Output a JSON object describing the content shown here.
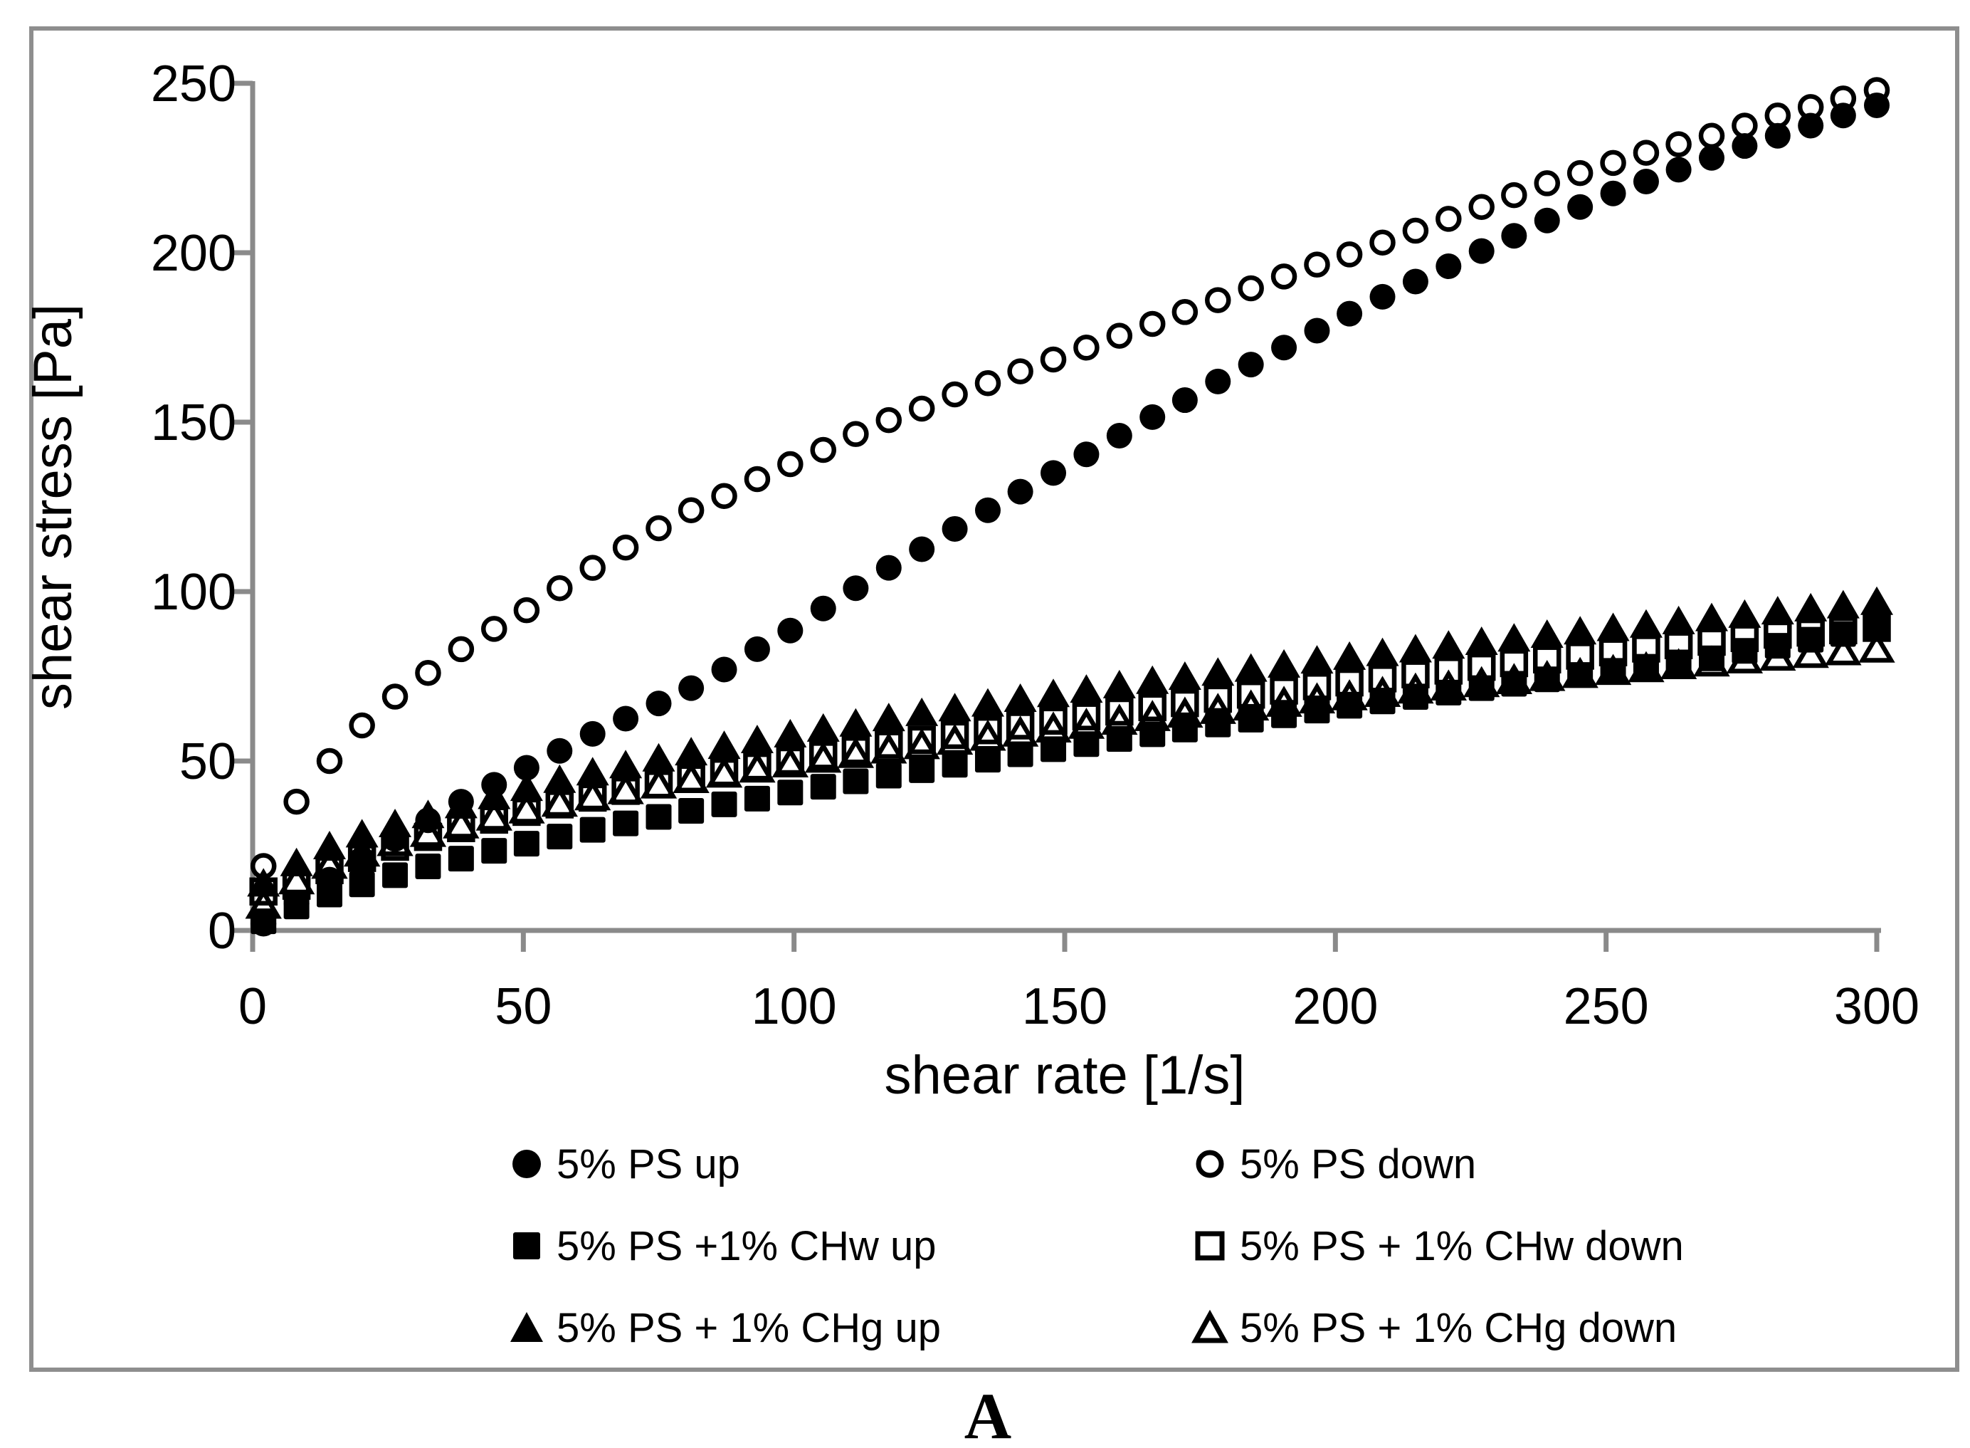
{
  "figure": {
    "corner_label": "A",
    "background_color": "#ffffff",
    "border_color": "#8e8e8e",
    "axis_color": "#8a8a8a",
    "marker_color": "#000000"
  },
  "chart_data": {
    "type": "scatter",
    "title": "",
    "xlabel": "shear rate [1/s]",
    "ylabel": "shear stress [Pa]",
    "xlim": [
      0,
      300
    ],
    "ylim": [
      0,
      250
    ],
    "x_ticks": [
      0,
      50,
      100,
      150,
      200,
      250,
      300
    ],
    "y_ticks": [
      0,
      50,
      100,
      150,
      200,
      250
    ],
    "grid": false,
    "legend_position": "bottom two-column",
    "series": [
      {
        "name": "5% PS up",
        "marker": "filled-circle",
        "x": [
          2.0,
          8.1,
          14.2,
          20.2,
          26.3,
          32.4,
          38.5,
          44.6,
          50.6,
          56.7,
          62.8,
          68.9,
          75.0,
          81.0,
          87.1,
          93.2,
          99.3,
          105.4,
          111.4,
          117.5,
          123.6,
          129.7,
          135.8,
          141.8,
          147.9,
          154.0,
          160.1,
          166.2,
          172.2,
          178.3,
          184.4,
          190.5,
          196.6,
          202.6,
          208.7,
          214.8,
          220.9,
          227.0,
          233.0,
          239.1,
          245.2,
          251.3,
          257.4,
          263.4,
          269.5,
          275.6,
          281.7,
          287.8,
          293.8,
          300.0
        ],
        "y": [
          2,
          8,
          15,
          21,
          27,
          32.5,
          38,
          43,
          48,
          53,
          58,
          62.5,
          67,
          71.5,
          77,
          83,
          88.5,
          95,
          101,
          107,
          112.5,
          118.5,
          124,
          129.5,
          135,
          140.5,
          146,
          151.5,
          156.5,
          162,
          167,
          172,
          177,
          182,
          187,
          191.5,
          196,
          200.5,
          205,
          209.5,
          213.5,
          217.5,
          221,
          224.5,
          228,
          231.5,
          234.5,
          237.5,
          240.5,
          243.5
        ]
      },
      {
        "name": "5% PS down",
        "marker": "open-circle",
        "x": [
          2.0,
          8.1,
          14.2,
          20.2,
          26.3,
          32.4,
          38.5,
          44.6,
          50.6,
          56.7,
          62.8,
          68.9,
          75.0,
          81.0,
          87.1,
          93.2,
          99.3,
          105.4,
          111.4,
          117.5,
          123.6,
          129.7,
          135.8,
          141.8,
          147.9,
          154.0,
          160.1,
          166.2,
          172.2,
          178.3,
          184.4,
          190.5,
          196.6,
          202.6,
          208.7,
          214.8,
          220.9,
          227.0,
          233.0,
          239.1,
          245.2,
          251.3,
          257.4,
          263.4,
          269.5,
          275.6,
          281.7,
          287.8,
          293.8,
          300.0
        ],
        "y": [
          19,
          38,
          50,
          60.5,
          69,
          76,
          83,
          89,
          94.5,
          101,
          107,
          113,
          118.7,
          124,
          128.2,
          133.2,
          137.6,
          141.8,
          146.5,
          150.6,
          154,
          158.2,
          161.5,
          165,
          168.5,
          172,
          175.5,
          179,
          182.5,
          186,
          189.5,
          193,
          196.5,
          199.5,
          203,
          206.5,
          210,
          213.5,
          217,
          220.5,
          223.5,
          226.5,
          229.5,
          232,
          234.5,
          237.5,
          240.5,
          243,
          245.5,
          248
        ]
      },
      {
        "name": "5% PS +1% CHw  up",
        "marker": "filled-square",
        "x": [
          2.0,
          8.1,
          14.2,
          20.2,
          26.3,
          32.4,
          38.5,
          44.6,
          50.6,
          56.7,
          62.8,
          68.9,
          75.0,
          81.0,
          87.1,
          93.2,
          99.3,
          105.4,
          111.4,
          117.5,
          123.6,
          129.7,
          135.8,
          141.8,
          147.9,
          154.0,
          160.1,
          166.2,
          172.2,
          178.3,
          184.4,
          190.5,
          196.6,
          202.6,
          208.7,
          214.8,
          220.9,
          227.0,
          233.0,
          239.1,
          245.2,
          251.3,
          257.4,
          263.4,
          269.5,
          275.6,
          281.7,
          287.8,
          293.8,
          300.0
        ],
        "y": [
          2.7,
          7.1,
          10.6,
          13.6,
          16.3,
          18.9,
          21.2,
          23.5,
          25.6,
          27.7,
          29.7,
          31.6,
          33.5,
          35.3,
          37.2,
          38.9,
          40.7,
          42.4,
          44,
          45.7,
          47.3,
          48.9,
          50.4,
          52,
          53.5,
          55,
          56.5,
          57.9,
          59.3,
          60.8,
          62.2,
          63.5,
          64.9,
          66.3,
          67.6,
          68.9,
          70.2,
          71.5,
          72.8,
          74.1,
          75.4,
          76.6,
          77.8,
          79.1,
          80.3,
          82.5,
          84,
          85.8,
          87.5,
          89.5
        ]
      },
      {
        "name": "5% PS + 1% CHw down",
        "marker": "open-square",
        "x": [
          2.0,
          8.1,
          14.2,
          20.2,
          26.3,
          32.4,
          38.5,
          44.6,
          50.6,
          56.7,
          62.8,
          68.9,
          75.0,
          81.0,
          87.1,
          93.2,
          99.3,
          105.4,
          111.4,
          117.5,
          123.6,
          129.7,
          135.8,
          141.8,
          147.9,
          154.0,
          160.1,
          166.2,
          172.2,
          178.3,
          184.4,
          190.5,
          196.6,
          202.6,
          208.7,
          214.8,
          220.9,
          227.0,
          233.0,
          239.1,
          245.2,
          251.3,
          257.4,
          263.4,
          269.5,
          275.6,
          281.7,
          287.8,
          293.8,
          300.0
        ],
        "y": [
          11.5,
          13.2,
          17.8,
          21.4,
          24.7,
          27.6,
          30.2,
          32.7,
          35,
          37.2,
          39.2,
          41.2,
          43.1,
          44.9,
          46.7,
          48.4,
          50.1,
          51.7,
          53.2,
          54.8,
          56.2,
          57.7,
          59.1,
          60.5,
          61.9,
          63.2,
          64.6,
          65.9,
          67.1,
          68.4,
          69.6,
          70.8,
          72.1,
          73.2,
          74.4,
          75.6,
          76.7,
          77.8,
          78.9,
          80,
          81.1,
          82.1,
          83.2,
          84.2,
          85.2,
          86.3,
          87.3,
          87.9,
          88.6,
          89.3
        ]
      },
      {
        "name": "5% PS + 1% CHg up",
        "marker": "filled-triangle",
        "x": [
          2.0,
          8.1,
          14.2,
          20.2,
          26.3,
          32.4,
          38.5,
          44.6,
          50.6,
          56.7,
          62.8,
          68.9,
          75.0,
          81.0,
          87.1,
          93.2,
          99.3,
          105.4,
          111.4,
          117.5,
          123.6,
          129.7,
          135.8,
          141.8,
          147.9,
          154.0,
          160.1,
          166.2,
          172.2,
          178.3,
          184.4,
          190.5,
          196.6,
          202.6,
          208.7,
          214.8,
          220.9,
          227.0,
          233.0,
          239.1,
          245.2,
          251.3,
          257.4,
          263.4,
          269.5,
          275.6,
          281.7,
          287.8,
          293.8,
          300.0
        ],
        "y": [
          14,
          20,
          25,
          28.5,
          31.5,
          34.2,
          37.1,
          39.8,
          42.2,
          44.6,
          46.8,
          48.9,
          50.9,
          52.7,
          54.6,
          56.3,
          58,
          59.7,
          61.2,
          62.8,
          64.3,
          65.7,
          67.1,
          68.5,
          69.9,
          71.2,
          72.5,
          73.8,
          75,
          76.2,
          77.4,
          78.6,
          79.8,
          80.9,
          82,
          83.1,
          84.2,
          85.3,
          86.3,
          87.4,
          88.4,
          89.4,
          90.4,
          91.4,
          92.3,
          93.3,
          94.3,
          95.2,
          96.1,
          97.1
        ]
      },
      {
        "name": "5% PS + 1% CHg down",
        "marker": "open-triangle",
        "x": [
          2.0,
          8.1,
          14.2,
          20.2,
          26.3,
          32.4,
          38.5,
          44.6,
          50.6,
          56.7,
          62.8,
          68.9,
          75.0,
          81.0,
          87.1,
          93.2,
          99.3,
          105.4,
          111.4,
          117.5,
          123.6,
          129.7,
          135.8,
          141.8,
          147.9,
          154.0,
          160.1,
          166.2,
          172.2,
          178.3,
          184.4,
          190.5,
          196.6,
          202.6,
          208.7,
          214.8,
          220.9,
          227.0,
          233.0,
          239.1,
          245.2,
          251.3,
          257.4,
          263.4,
          269.5,
          275.6,
          281.7,
          287.8,
          293.8,
          300.0
        ],
        "y": [
          7.5,
          14.7,
          19.3,
          22.9,
          26,
          28.7,
          31.2,
          33.5,
          35.6,
          37.6,
          39.5,
          41.3,
          43,
          44.6,
          46.2,
          47.7,
          49.2,
          50.6,
          52,
          53.3,
          54.6,
          55.9,
          57.1,
          58.3,
          59.5,
          60.6,
          61.8,
          62.9,
          63.9,
          65,
          66,
          67.1,
          68.1,
          69,
          70,
          71,
          71.9,
          72.9,
          73.8,
          74.7,
          75.6,
          76.5,
          77.3,
          78.2,
          79,
          79.9,
          80.7,
          81.5,
          82.3,
          83.1
        ]
      }
    ]
  },
  "layout_meta": {
    "draw_order": [
      1,
      0,
      2,
      4,
      3,
      5
    ],
    "legend_slots": [
      {
        "series": 0,
        "col": 0,
        "row": 0
      },
      {
        "series": 1,
        "col": 1,
        "row": 0
      },
      {
        "series": 2,
        "col": 0,
        "row": 1
      },
      {
        "series": 3,
        "col": 1,
        "row": 1
      },
      {
        "series": 4,
        "col": 0,
        "row": 2
      },
      {
        "series": 5,
        "col": 1,
        "row": 2
      }
    ]
  }
}
